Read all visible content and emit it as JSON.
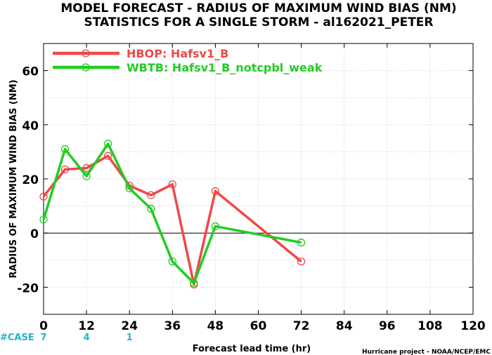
{
  "chart_data": {
    "type": "line",
    "title": "MODEL FORECAST - RADIUS OF MAXIMUM WIND BIAS (NM)",
    "subtitle": "STATISTICS FOR A SINGLE STORM - al162021_PETER",
    "xlabel": "Forecast lead time (hr)",
    "ylabel": "RADIUS OF MAXIMUM WIND BIAS (NM)",
    "xlim": [
      0,
      120
    ],
    "ylim": [
      -30,
      70
    ],
    "xticks": [
      0,
      12,
      24,
      36,
      48,
      60,
      72,
      84,
      96,
      108,
      120
    ],
    "yticks": [
      -20,
      0,
      20,
      40,
      60
    ],
    "grid": true,
    "zero_line": true,
    "legend_position": "top-left",
    "series": [
      {
        "name": "HBOP: Hafsv1_B",
        "color": "#f04848",
        "x": [
          0,
          6,
          12,
          18,
          24,
          30,
          36,
          42,
          48,
          72
        ],
        "values": [
          13.5,
          23.5,
          24,
          28.5,
          17.5,
          14,
          18,
          -19,
          15.5,
          -10.5
        ]
      },
      {
        "name": "WBTB: Hafsv1_B_notcpbl_weak",
        "color": "#22cc22",
        "x": [
          0,
          6,
          12,
          18,
          24,
          30,
          36,
          42,
          48,
          72
        ],
        "values": [
          5,
          31,
          21,
          33,
          16.5,
          9,
          -10.5,
          -18.5,
          2.5,
          -3.5
        ]
      }
    ],
    "case_label": "#CASE",
    "case_counts": [
      {
        "x": 0,
        "count": "7"
      },
      {
        "x": 12,
        "count": "4"
      },
      {
        "x": 24,
        "count": "1"
      }
    ],
    "credit": "Hurricane project - NOAA/NCEP/EMC",
    "colors": {
      "axis": "#000000",
      "grid": "#d0d0d0",
      "case": "#22b5c8"
    }
  }
}
